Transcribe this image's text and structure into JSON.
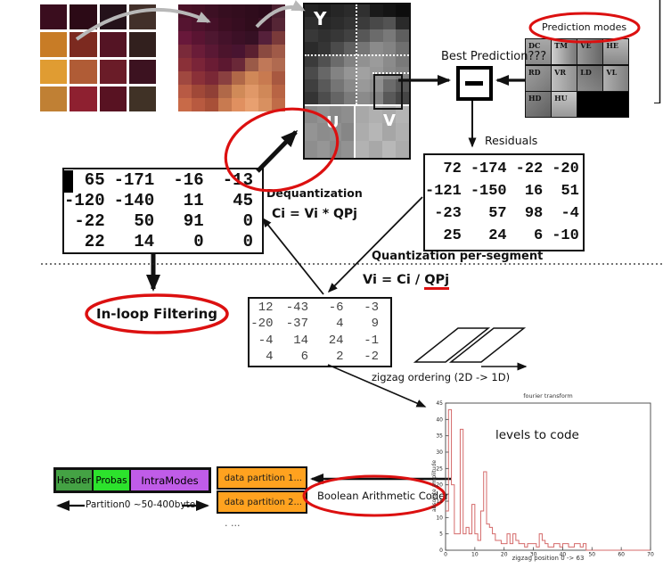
{
  "colors": {
    "annotation_red": "#dc1010",
    "partition_orange": "#ffa21f",
    "header_green": "#44a244",
    "probas_green": "#2ce22c",
    "intramodes_purple": "#c05ce8",
    "flow_arrow_gray": "#b8b8b8"
  },
  "images": {
    "original": [
      "#3a0d1e",
      "#2c0a16",
      "#24121a",
      "#42302a",
      "#c87c26",
      "#7c2a20",
      "#541424",
      "#32201e",
      "#e09c32",
      "#b05c36",
      "#6a1c28",
      "#3c1220",
      "#c08034",
      "#8e2030",
      "#581222",
      "#403226"
    ],
    "pixelated": [
      "#4a1228",
      "#451126",
      "#3d1024",
      "#360e20",
      "#330d1e",
      "#2f0c1c",
      "#2b0a1a",
      "#4a2030",
      "#551430",
      "#4d122c",
      "#451028",
      "#3c0e22",
      "#360d20",
      "#300c1c",
      "#3a1024",
      "#552535",
      "#68183a",
      "#5a1432",
      "#4e1730",
      "#44122a",
      "#3c1026",
      "#361024",
      "#55203a",
      "#7a3a3a",
      "#7a2a3a",
      "#6a1c38",
      "#5a1834",
      "#4c142c",
      "#481430",
      "#5a2030",
      "#8a4a40",
      "#a05a48",
      "#8a3038",
      "#7a2438",
      "#6a1c34",
      "#5c1830",
      "#6a2838",
      "#9a5a48",
      "#c07858",
      "#b06a50",
      "#a04840",
      "#8a3038",
      "#7a2836",
      "#8a4040",
      "#b06848",
      "#d08858",
      "#c87a50",
      "#a85840",
      "#b85a44",
      "#a04838",
      "#904036",
      "#b06848",
      "#d08a58",
      "#e09868",
      "#d08858",
      "#b86444",
      "#c86a48",
      "#b85a40",
      "#a85038",
      "#c87a50",
      "#e09060",
      "#e8a070",
      "#d89060",
      "#c06c48"
    ],
    "y_plane": [
      "#232323",
      "#1e1e1e",
      "#262626",
      "#2b2b2b",
      "#303030",
      "#1a1a1a",
      "#141414",
      "#0d0d0d",
      "#2e2e2e",
      "#262626",
      "#2c2c2c",
      "#333333",
      "#3b3b3b",
      "#494949",
      "#535353",
      "#2a2a2a",
      "#383838",
      "#303030",
      "#373737",
      "#414141",
      "#575757",
      "#6b6b6b",
      "#797979",
      "#5e5e5e",
      "#2b2b2b",
      "#353535",
      "#4b4b4b",
      "#5f5f5f",
      "#757575",
      "#8b8b8b",
      "#838383",
      "#6f6f6f",
      "#3b3b3b",
      "#515151",
      "#6b6b6b",
      "#818181",
      "#919191",
      "#9b9b9b",
      "#8b8b8b",
      "#797979",
      "#4b4b4b",
      "#676767",
      "#838383",
      "#959595",
      "#a1a1a1",
      "#979797",
      "#898989",
      "#818181",
      "#3f3f3f",
      "#595959",
      "#757575",
      "#898989",
      "#999999",
      "#8f8f8f",
      "#6b6b6b",
      "#575757",
      "#343434",
      "#4d4d4d",
      "#656565",
      "#7b7b7b",
      "#8b8b8b",
      "#818181",
      "#595959",
      "#454545"
    ],
    "u_plane": [
      "#8a8a8a",
      "#929292",
      "#888888",
      "#8e8e8e",
      "#949494",
      "#8c8c8c",
      "#909090",
      "#868686",
      "#8e8e8e",
      "#969696",
      "#8a8a8a",
      "#929292"
    ],
    "v_plane": [
      "#a8a8a8",
      "#b0b0b0",
      "#aaaaaa",
      "#b4b4b4",
      "#acacac",
      "#b6b6b6",
      "#a6a6a6",
      "#b0b0b0",
      "#b2b2b2",
      "#a8a8a8",
      "#b8b8b8",
      "#acacac"
    ]
  },
  "yuv": {
    "y": "Y",
    "u": "U",
    "v": "V"
  },
  "prediction": {
    "ellipse_label": "Prediction modes",
    "best_label": "Best Prediction???",
    "black_cell": "#000000",
    "modes": [
      {
        "label": "DC",
        "c1": "#a8a8a8",
        "c2": "#8a8a8a",
        "dir": 180
      },
      {
        "label": "TM",
        "c1": "#d0d0d0",
        "c2": "#787878",
        "dir": 90
      },
      {
        "label": "VE",
        "c1": "#9a9a9a",
        "c2": "#666666",
        "dir": 90
      },
      {
        "label": "HE",
        "c1": "#b8b8b8",
        "c2": "#888888",
        "dir": 180
      },
      {
        "label": "RD",
        "c1": "#a0a0a0",
        "c2": "#787878",
        "dir": 135
      },
      {
        "label": "VR",
        "c1": "#c0c0c0",
        "c2": "#909090",
        "dir": 90
      },
      {
        "label": "LD",
        "c1": "#909090",
        "c2": "#686868",
        "dir": 45
      },
      {
        "label": "VL",
        "c1": "#b0b0b0",
        "c2": "#808080",
        "dir": 90
      },
      {
        "label": "HD",
        "c1": "#8a8a8a",
        "c2": "#606060",
        "dir": 135
      },
      {
        "label": "HU",
        "c1": "#c8c8c8",
        "c2": "#989898",
        "dir": 180
      }
    ]
  },
  "matrices": {
    "residuals": {
      "label": "Residuals",
      "rows": [
        [
          "72",
          "-174",
          "-22",
          "-20"
        ],
        [
          "-121",
          "-150",
          "16",
          "51"
        ],
        [
          "-23",
          "57",
          "98",
          "-4"
        ],
        [
          "25",
          "24",
          "6",
          "-10"
        ]
      ]
    },
    "dequantized": {
      "rows": [
        [
          "65",
          "-171",
          "-16",
          "-13"
        ],
        [
          "-120",
          "-140",
          "11",
          "45"
        ],
        [
          "-22",
          "50",
          "91",
          "0"
        ],
        [
          "22",
          "14",
          "0",
          "0"
        ]
      ]
    },
    "quantized": {
      "rows": [
        [
          "12",
          "-43",
          "-6",
          "-3"
        ],
        [
          "-20",
          "-37",
          "4",
          "9"
        ],
        [
          "-4",
          "14",
          "24",
          "-1"
        ],
        [
          "4",
          "6",
          "2",
          "-2"
        ]
      ]
    }
  },
  "dequantization": {
    "title": "Dequantization",
    "formula": "Ci = Vi * QPj"
  },
  "quantization": {
    "title": "Quantization per-segment",
    "formula_prefix": "Vi = Ci / ",
    "formula_highlight": "QPj"
  },
  "inloop_label": "In-loop Filtering",
  "zigzag_label": "zigzag ordering  (2D -> 1D)",
  "bitstream": {
    "segments": [
      {
        "label": "Header",
        "color": "#44a244",
        "width": 40
      },
      {
        "label": "Probas",
        "color": "#2ce22c",
        "width": 40
      },
      {
        "label": "IntraModes",
        "color": "#c05ce8",
        "width": 85
      }
    ],
    "partition0_label": "Partition0 ~50-400bytes",
    "partitions": [
      {
        "label": "data partition 1...",
        "color": "#ffa21f"
      },
      {
        "label": "data partition 2...",
        "color": "#ffa21f"
      }
    ],
    "more": ". ...",
    "coder_label": "Boolean Arithmetic Coder"
  },
  "chart_data": {
    "type": "line",
    "subtype": "step-histogram",
    "title": "fourier transform",
    "xlabel": "zigzag position  0 -> 63",
    "ylabel": "absolute amplitude",
    "annotation": "levels to code",
    "series_color": "#d46a6a",
    "xlim": [
      0,
      70
    ],
    "ylim": [
      0,
      45
    ],
    "xticks": [
      0,
      10,
      20,
      30,
      40,
      50,
      60,
      70
    ],
    "yticks": [
      0,
      5,
      10,
      15,
      20,
      25,
      30,
      35,
      40,
      45
    ],
    "x_start": 0,
    "values": [
      12,
      43,
      20,
      5,
      5,
      37,
      5,
      7,
      5,
      14,
      5,
      3,
      12,
      24,
      8,
      7,
      5,
      3,
      3,
      2,
      2,
      5,
      2,
      5,
      3,
      2,
      2,
      1,
      2,
      2,
      2,
      1,
      5,
      3,
      2,
      1,
      1,
      2,
      2,
      1,
      2,
      2,
      1,
      1,
      2,
      2,
      1,
      2,
      0,
      0
    ]
  }
}
